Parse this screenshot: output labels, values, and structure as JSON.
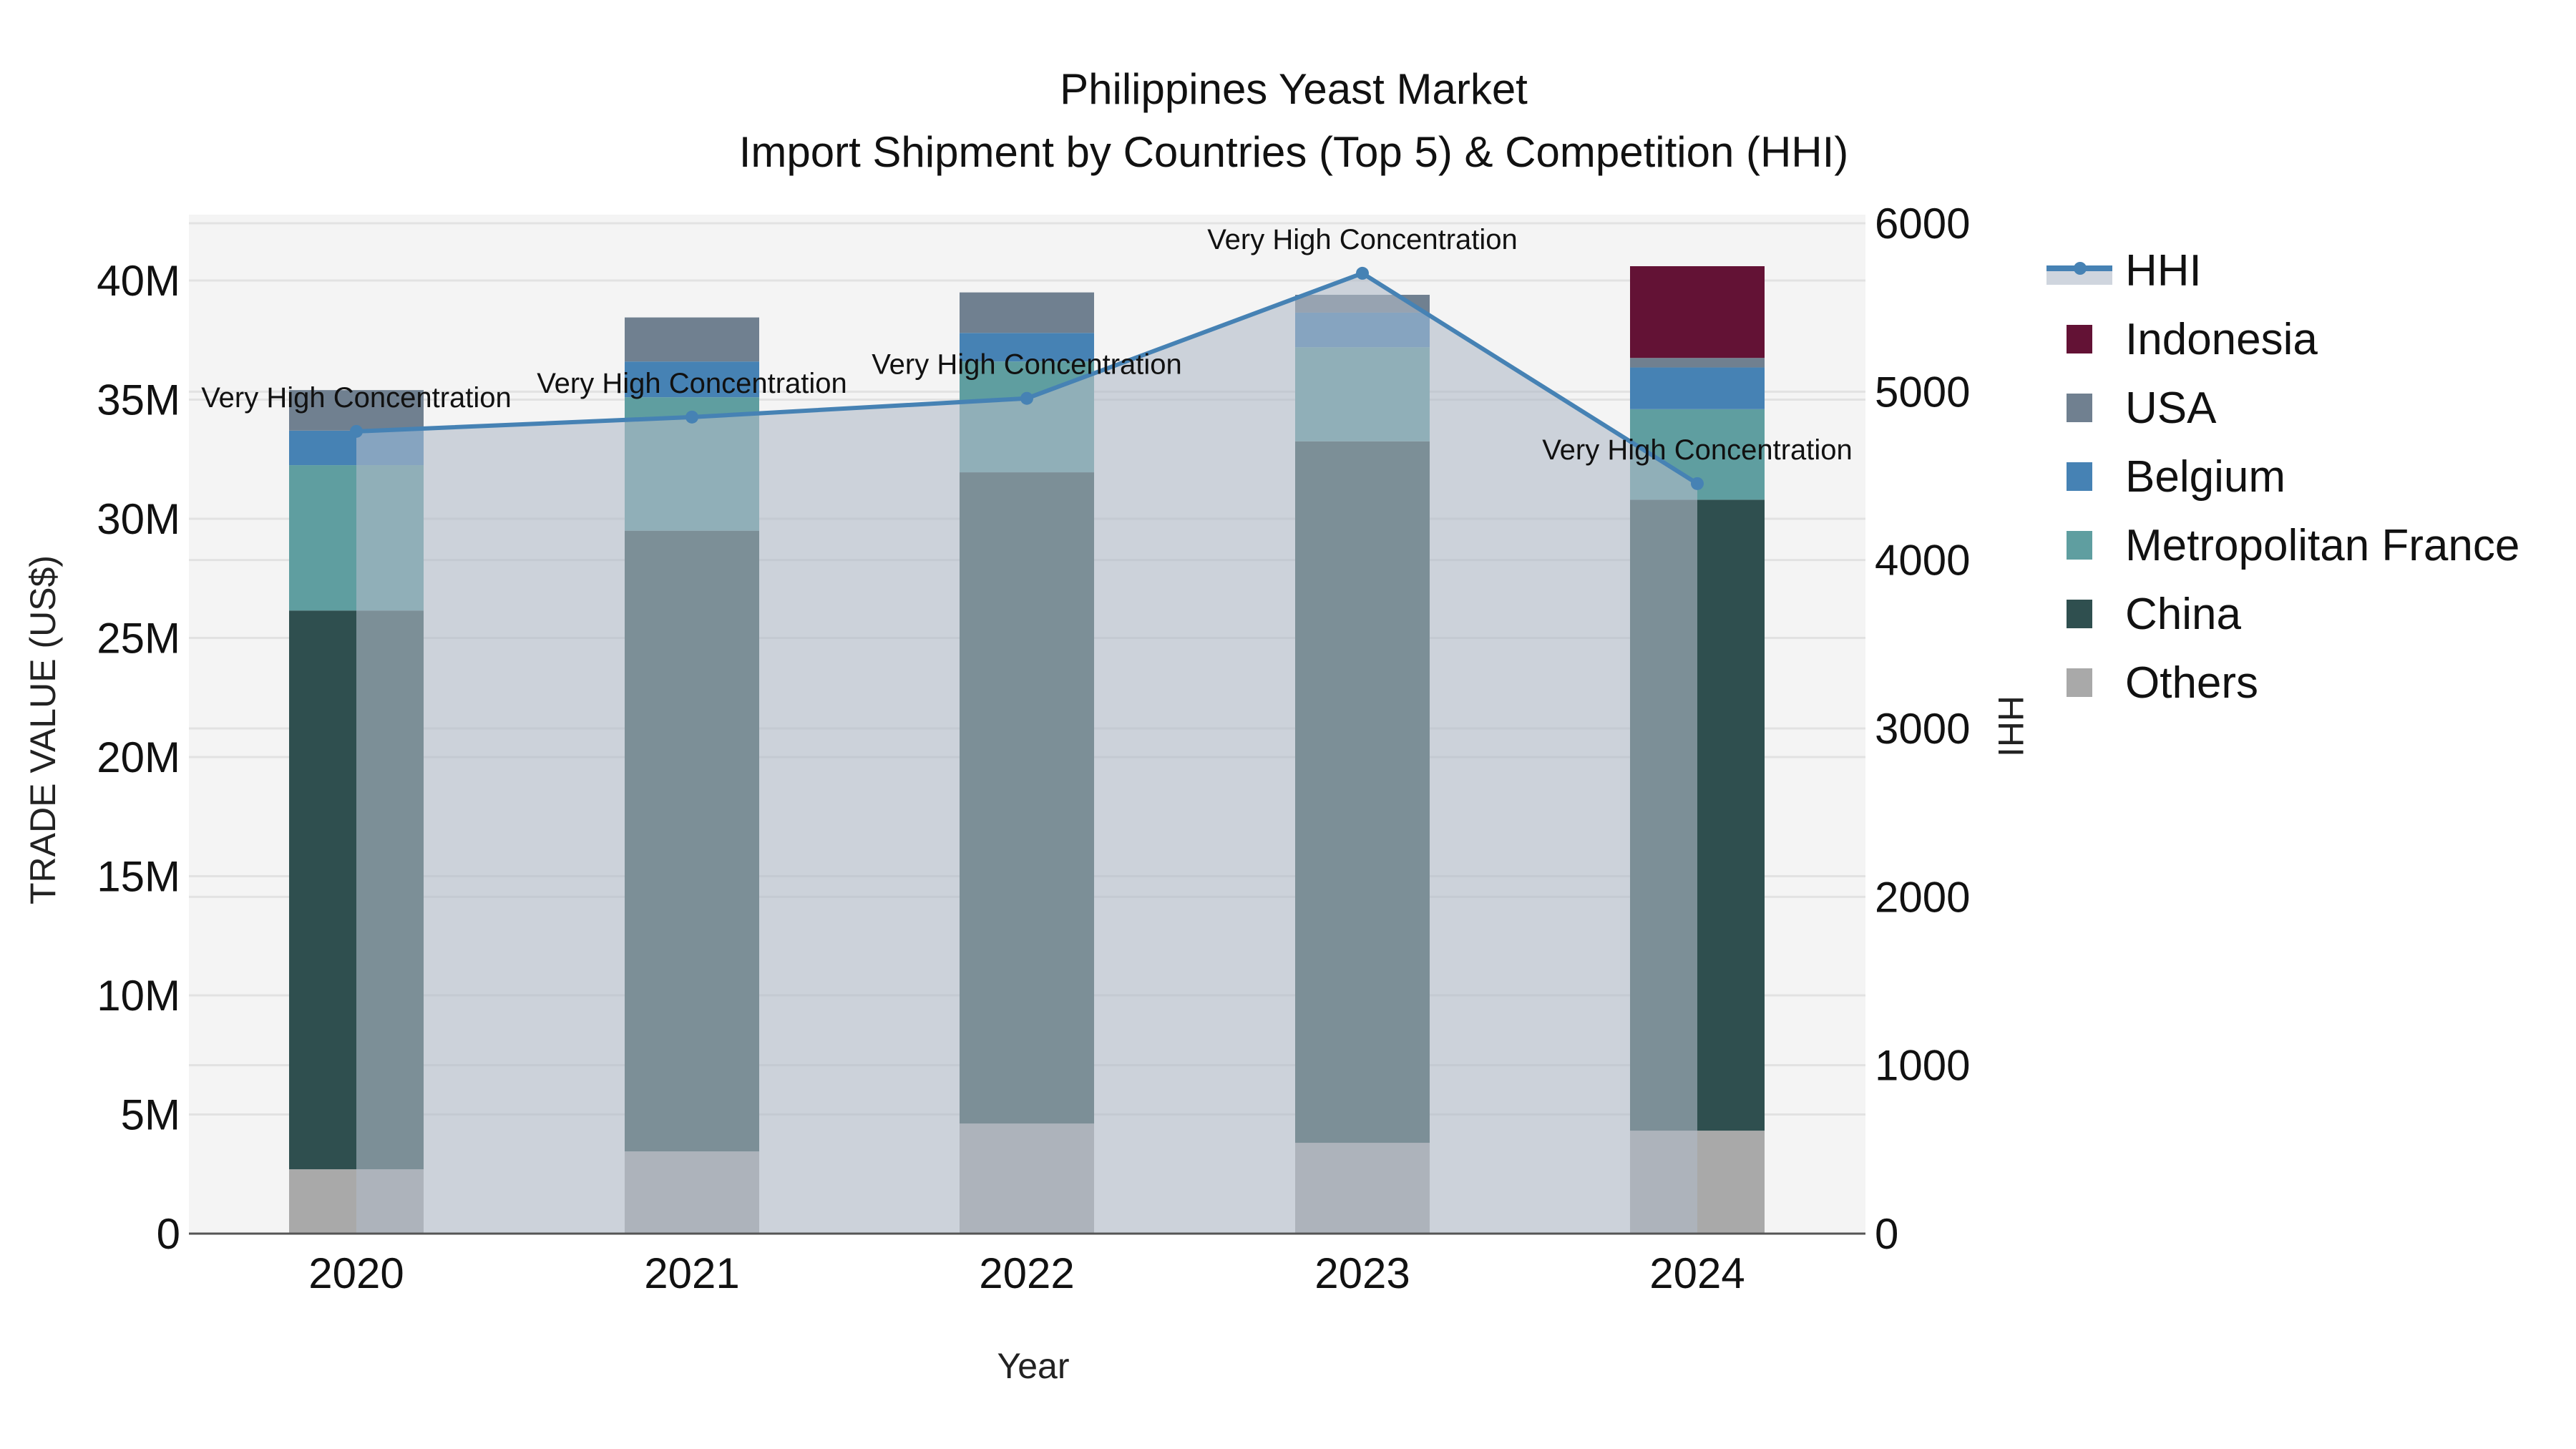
{
  "title": {
    "line1": "Philippines Yeast Market",
    "line2": "Import Shipment by Countries (Top 5) & Competition (HHI)"
  },
  "axes": {
    "x_title": "Year",
    "y_title": "TRADE VALUE (US$)",
    "y2_title": "HHI",
    "y_ticks": [
      "0",
      "5M",
      "10M",
      "15M",
      "20M",
      "25M",
      "30M",
      "35M",
      "40M"
    ],
    "y2_ticks": [
      "0",
      "1000",
      "2000",
      "3000",
      "4000",
      "5000",
      "6000"
    ]
  },
  "legend": {
    "items": [
      {
        "label": "HHI",
        "color": "#4682b4",
        "kind": "line"
      },
      {
        "label": "Indonesia",
        "color": "#631235",
        "kind": "bar"
      },
      {
        "label": "USA",
        "color": "#708090",
        "kind": "bar"
      },
      {
        "label": "Belgium",
        "color": "#4682b4",
        "kind": "bar"
      },
      {
        "label": "Metropolitan France",
        "color": "#5f9ea0",
        "kind": "bar"
      },
      {
        "label": "China",
        "color": "#2f4f4f",
        "kind": "bar"
      },
      {
        "label": "Others",
        "color": "#a9a9a9",
        "kind": "bar"
      }
    ]
  },
  "chart_data": {
    "type": "bar",
    "subtype": "stacked bar + line (dual axis)",
    "title": "Philippines Yeast Market — Import Shipment by Countries (Top 5) & Competition (HHI)",
    "xlabel": "Year",
    "ylabel": "TRADE VALUE (US$)",
    "y2label": "HHI",
    "categories": [
      "2020",
      "2021",
      "2022",
      "2023",
      "2024"
    ],
    "ylim": [
      0,
      42500000
    ],
    "y2lim": [
      0,
      6070
    ],
    "grid": true,
    "legend_position": "right",
    "series": [
      {
        "name": "Others",
        "color": "#a9a9a9",
        "values": [
          2700000,
          3450000,
          4620000,
          3810000,
          4320000
        ]
      },
      {
        "name": "China",
        "color": "#2f4f4f",
        "values": [
          23450000,
          26050000,
          27330000,
          29440000,
          26480000
        ]
      },
      {
        "name": "Metropolitan France",
        "color": "#5f9ea0",
        "values": [
          6100000,
          5600000,
          4650000,
          3950000,
          3800000
        ]
      },
      {
        "name": "Belgium",
        "color": "#4682b4",
        "values": [
          1450000,
          1500000,
          1200000,
          1450000,
          1750000
        ]
      },
      {
        "name": "USA",
        "color": "#708090",
        "values": [
          1700000,
          1850000,
          1700000,
          750000,
          400000
        ]
      },
      {
        "name": "Indonesia",
        "color": "#631235",
        "values": [
          0,
          0,
          0,
          0,
          3850000
        ]
      }
    ],
    "line_series": {
      "name": "HHI",
      "axis": "y2",
      "color": "#4682b4",
      "fill": "rgba(176,186,200,0.6)",
      "values": [
        4764,
        4849,
        4960,
        5703,
        4454
      ],
      "annotations": [
        "Very High Concentration",
        "Very High Concentration",
        "Very High Concentration",
        "Very High Concentration",
        "Very High Concentration"
      ]
    }
  }
}
